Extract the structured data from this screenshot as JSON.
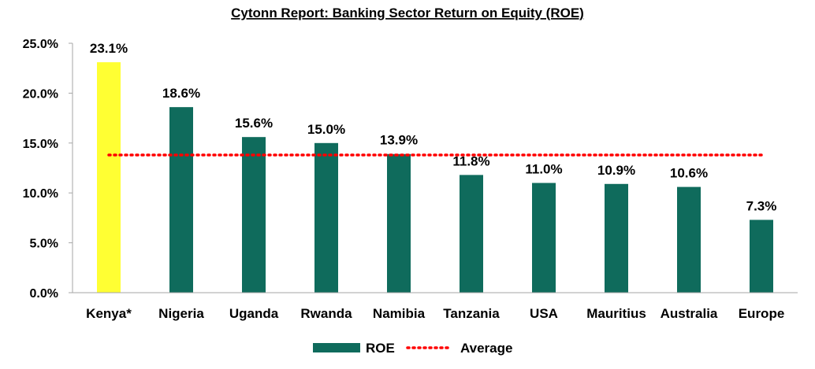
{
  "chart_data": {
    "type": "bar",
    "title": "Cytonn Report: Banking Sector Return on Equity (ROE)",
    "categories": [
      "Kenya*",
      "Nigeria",
      "Uganda",
      "Rwanda",
      "Namibia",
      "Tanzania",
      "USA",
      "Mauritius",
      "Australia",
      "Europe"
    ],
    "series": [
      {
        "name": "ROE",
        "values": [
          23.1,
          18.6,
          15.6,
          15.0,
          13.9,
          11.8,
          11.0,
          10.9,
          10.6,
          7.3
        ],
        "data_labels": [
          "23.1%",
          "18.6%",
          "15.6%",
          "15.0%",
          "13.9%",
          "11.8%",
          "11.0%",
          "10.9%",
          "10.6%",
          "7.3%"
        ],
        "color": "#0f6b5c",
        "highlight": {
          "category": "Kenya*",
          "color": "#ffff33"
        }
      },
      {
        "name": "Average",
        "type": "line",
        "style": "dotted",
        "value": 13.8,
        "color": "#ff0000"
      }
    ],
    "ylim": [
      0,
      25
    ],
    "yticks": [
      0,
      5,
      10,
      15,
      20,
      25
    ],
    "ytick_labels": [
      "0.0%",
      "5.0%",
      "10.0%",
      "15.0%",
      "20.0%",
      "25.0%"
    ],
    "xlabel": "",
    "ylabel": "",
    "grid": false,
    "legend": {
      "position": "bottom",
      "entries": [
        "ROE",
        "Average"
      ]
    }
  }
}
